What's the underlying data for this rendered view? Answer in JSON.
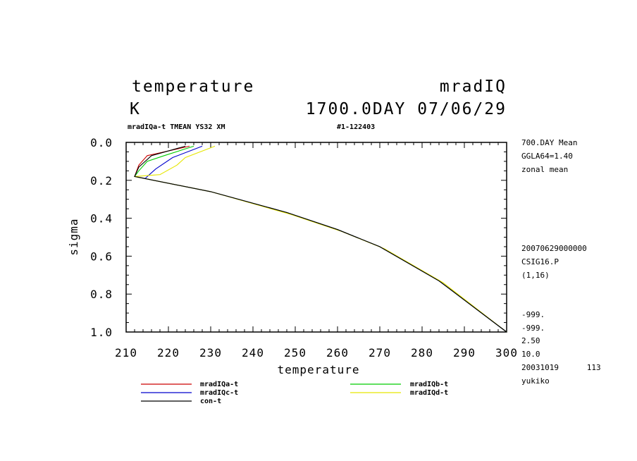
{
  "header": {
    "title_left": "temperature",
    "title_right": "mradIQ",
    "unit": "K",
    "time": "1700.0DAY 07/06/29",
    "sub_left": "mradIQa-t TMEAN YS32 XM",
    "sub_right": "#1-122403"
  },
  "side_info": {
    "top": [
      "700.DAY Mean",
      "GGLA64=1.40",
      "zonal mean"
    ],
    "middle": [
      "20070629000000",
      "CSIG16.P",
      "(1,16)"
    ],
    "bottom": [
      "-999.",
      "-999.",
      "2.50",
      "10.0",
      "20031019      113",
      "yukiko"
    ]
  },
  "chart_data": {
    "type": "line",
    "xlabel": "temperature",
    "ylabel": "sigma",
    "xlim": [
      210,
      300
    ],
    "ylim": [
      0.0,
      1.0
    ],
    "y_inverted": true,
    "x_ticks": [
      "210",
      "220",
      "230",
      "240",
      "250",
      "260",
      "270",
      "280",
      "290",
      "300"
    ],
    "y_ticks": [
      "0.0",
      "0.2",
      "0.4",
      "0.6",
      "0.8",
      "1.0"
    ],
    "grid": false,
    "legend_position": "bottom",
    "series": [
      {
        "name": "mradIQa-t",
        "color": "#cc0000",
        "points": [
          [
            225.0,
            0.02
          ],
          [
            217.0,
            0.06
          ],
          [
            215.0,
            0.07
          ],
          [
            213.0,
            0.12
          ],
          [
            212.5,
            0.15
          ],
          [
            212.0,
            0.18
          ],
          [
            230,
            0.26
          ],
          [
            248,
            0.37
          ],
          [
            260,
            0.46
          ],
          [
            270,
            0.55
          ],
          [
            284,
            0.73
          ],
          [
            300,
            1.0
          ]
        ]
      },
      {
        "name": "mradIQb-t",
        "color": "#00cc00",
        "points": [
          [
            226.0,
            0.02
          ],
          [
            219.0,
            0.07
          ],
          [
            215.0,
            0.1
          ],
          [
            213.0,
            0.15
          ],
          [
            212.0,
            0.18
          ],
          [
            230,
            0.26
          ],
          [
            248,
            0.37
          ],
          [
            260,
            0.46
          ],
          [
            270,
            0.55
          ],
          [
            284,
            0.73
          ],
          [
            300,
            1.0
          ]
        ]
      },
      {
        "name": "mradIQc-t",
        "color": "#0000cc",
        "points": [
          [
            228.0,
            0.02
          ],
          [
            221.0,
            0.08
          ],
          [
            217.0,
            0.14
          ],
          [
            214.5,
            0.19
          ],
          [
            212.0,
            0.18
          ],
          [
            230,
            0.26
          ],
          [
            248,
            0.37
          ],
          [
            260,
            0.46
          ],
          [
            270,
            0.55
          ],
          [
            284,
            0.73
          ],
          [
            300,
            1.0
          ]
        ]
      },
      {
        "name": "mradIQd-t",
        "color": "#e6e600",
        "points": [
          [
            231.0,
            0.02
          ],
          [
            224.0,
            0.08
          ],
          [
            222.0,
            0.12
          ],
          [
            218.0,
            0.17
          ],
          [
            212.0,
            0.18
          ],
          [
            230,
            0.26
          ],
          [
            249,
            0.38
          ],
          [
            261,
            0.47
          ],
          [
            271,
            0.56
          ],
          [
            285,
            0.74
          ],
          [
            300,
            1.0
          ]
        ]
      },
      {
        "name": "con-t",
        "color": "#000000",
        "points": [
          [
            224.0,
            0.02
          ],
          [
            216.0,
            0.07
          ],
          [
            214.0,
            0.11
          ],
          [
            213.0,
            0.13
          ],
          [
            212.0,
            0.18
          ],
          [
            230,
            0.26
          ],
          [
            248,
            0.37
          ],
          [
            260,
            0.46
          ],
          [
            270,
            0.55
          ],
          [
            284,
            0.73
          ],
          [
            300,
            1.0
          ]
        ]
      }
    ]
  }
}
